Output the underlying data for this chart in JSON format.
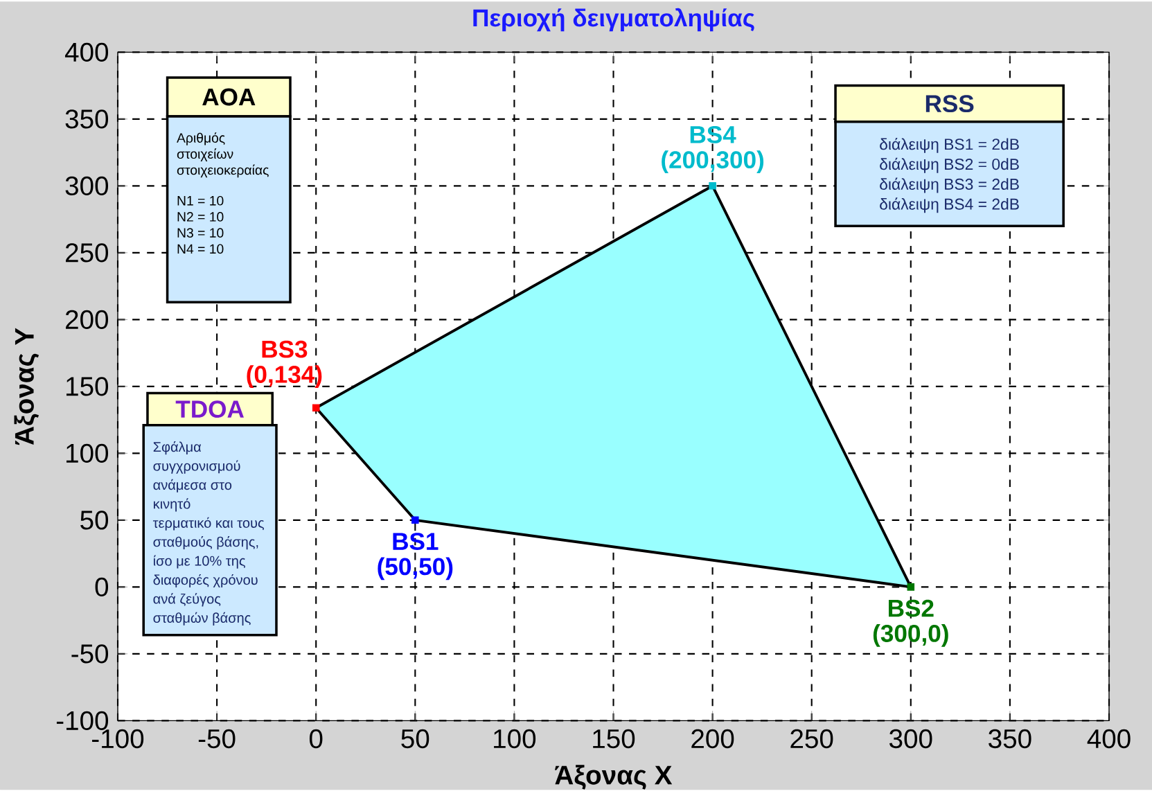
{
  "chart_data": {
    "type": "scatter",
    "title": "Περιοχή δειγματοληψίας",
    "xlabel": "Άξονας X",
    "ylabel": "Άξονας Y",
    "xlim": [
      -100,
      400
    ],
    "ylim": [
      -100,
      400
    ],
    "xticks": [
      -100,
      -50,
      0,
      50,
      100,
      150,
      200,
      250,
      300,
      350,
      400
    ],
    "yticks": [
      -100,
      -50,
      0,
      50,
      100,
      150,
      200,
      250,
      300,
      350,
      400
    ],
    "grid": true,
    "marker": "square",
    "series": [
      {
        "type": "area",
        "marker": "none",
        "color": "#99ffff",
        "x": [
          50,
          300,
          200,
          0
        ],
        "values": [
          50,
          0,
          300,
          134
        ]
      },
      {
        "name": "BS1",
        "color": "#0000ff",
        "x": [
          50
        ],
        "values": [
          50
        ]
      },
      {
        "name": "BS2",
        "color": "#007700",
        "x": [
          300
        ],
        "values": [
          0
        ]
      },
      {
        "name": "BS3",
        "color": "#ff0000",
        "x": [
          0
        ],
        "values": [
          134
        ]
      },
      {
        "name": "BS4",
        "color": "#00bbcc",
        "x": [
          200
        ],
        "values": [
          300
        ]
      }
    ],
    "annotations": [
      "AOA",
      "Αριθμός",
      "στοιχείων",
      "στοιχειοκεραίας",
      "N1 = 10",
      "N2 = 10",
      "N3 = 10",
      "N4 = 10",
      "TDOA",
      "Σφάλμα",
      "συγχρονισμού",
      "ανάμεσα στο",
      "κινητό",
      "τερματικό και τους",
      "σταθμούς βάσης,",
      "ίσο με 10% της",
      "διαφορές χρόνου",
      "ανά ζεύγος",
      "σταθμών βάσης",
      "RSS",
      "διάλειψη BS1 = 2dB",
      "διάλειψη BS2 = 0dB",
      "διάλειψη BS3 = 2dB",
      "διάλειψη BS4 = 2dB",
      {
        "text": "(50,50)",
        "x": 50,
        "y": 50
      },
      {
        "text": "(300,0)",
        "x": 300,
        "y": 0
      },
      {
        "text": "(0,134)",
        "x": 0,
        "y": 134
      },
      {
        "text": "(200,300)",
        "x": 200,
        "y": 300
      }
    ]
  }
}
